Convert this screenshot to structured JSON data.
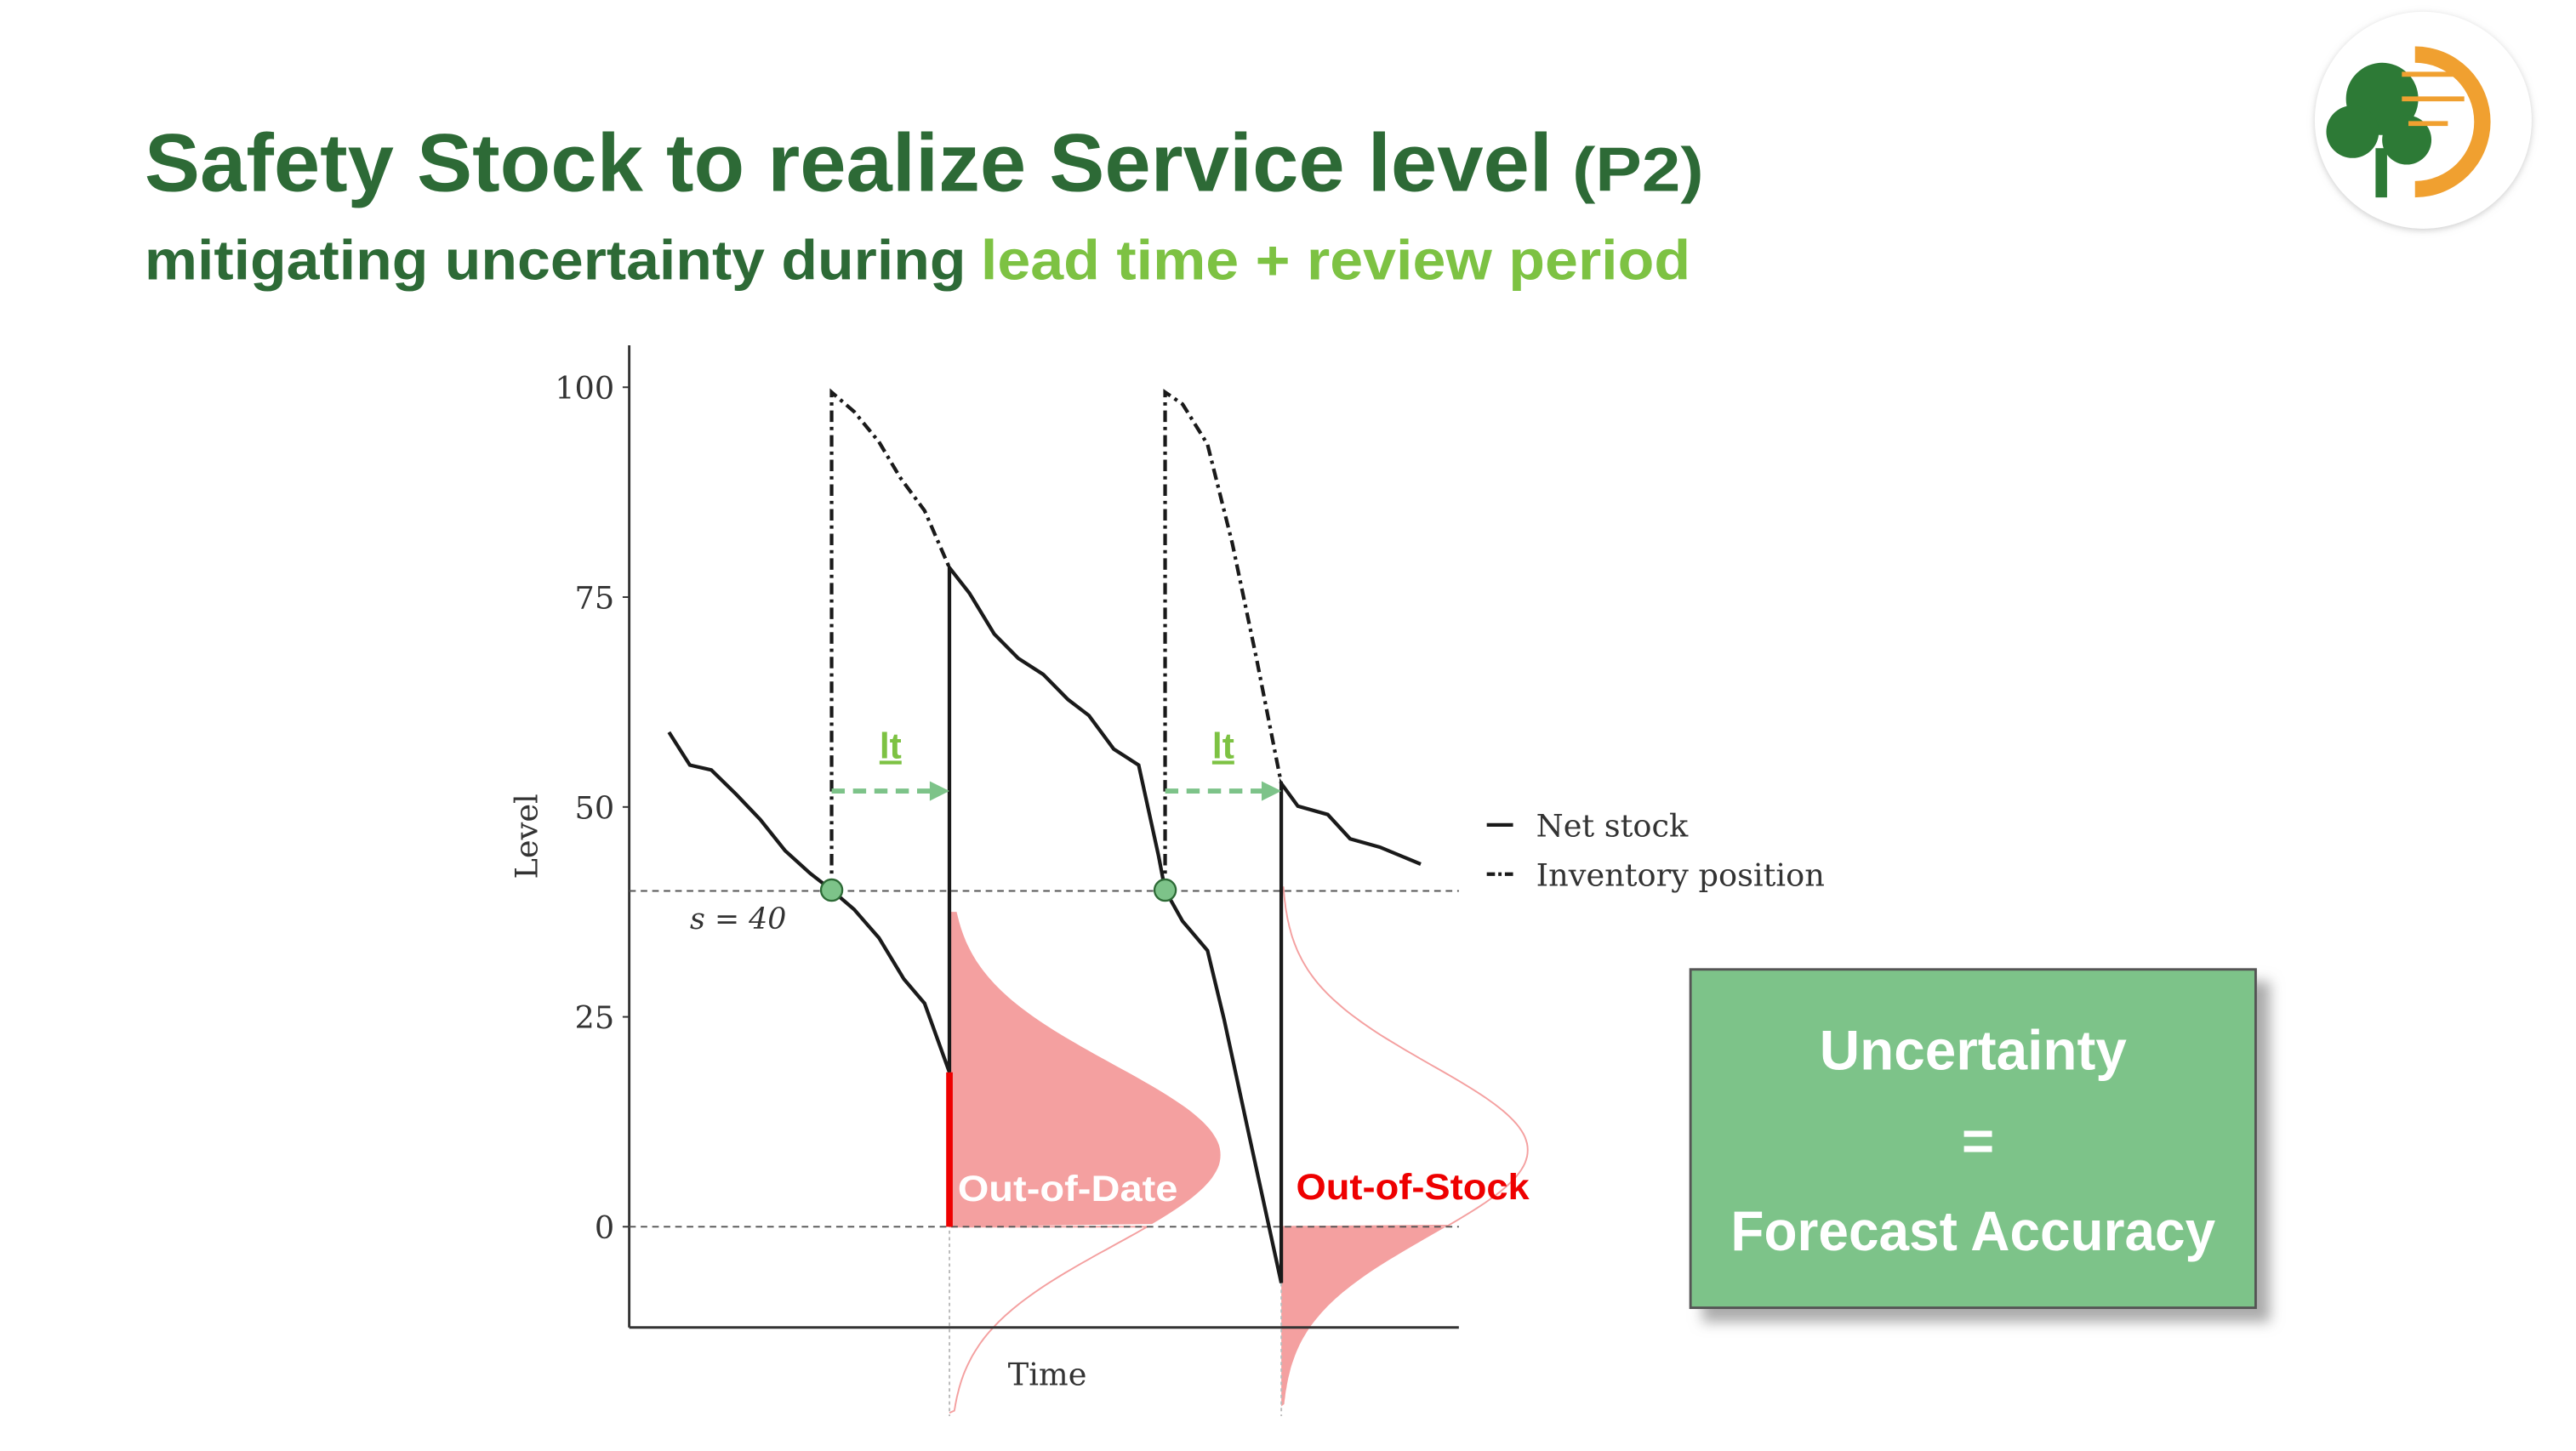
{
  "header": {
    "title": "Safety Stock to realize Service level",
    "title_suffix": "(P2)",
    "subtitle": "mitigating uncertainty during",
    "subtitle_highlight": "lead time + review period"
  },
  "chart_data": {
    "type": "line",
    "ylabel": "Level",
    "xlabel": "Time",
    "xlim": [
      0,
      100
    ],
    "ylim": [
      -12,
      105
    ],
    "yticks": [
      0,
      25,
      50,
      75,
      100
    ],
    "legend": "right",
    "series": [
      {
        "name": "Net stock",
        "color": "#1a1a1a",
        "style": "solid",
        "x": [
          4.8,
          7.3,
          9.9,
          12.9,
          15.8,
          18.8,
          21.8,
          24.4,
          27.1,
          30.1,
          33.1,
          35.6,
          38.6,
          38.6,
          41,
          44,
          46.9,
          49.9,
          52.9,
          55.4,
          58.4,
          61.4,
          63.8,
          64.6,
          66.7,
          69.7,
          71.7,
          74.7,
          78.6,
          78.6,
          80.6,
          84.2,
          86.9,
          90.5,
          95.4
        ],
        "values": [
          58.9,
          55,
          54.4,
          51.5,
          48.5,
          44.8,
          42.1,
          40.1,
          37.8,
          34.4,
          29.5,
          26.6,
          18.4,
          78.5,
          75.5,
          70.6,
          67.7,
          65.8,
          62.8,
          60.9,
          56.9,
          55,
          44.2,
          40.1,
          36.4,
          32.9,
          24.7,
          11,
          -6.7,
          52.8,
          50.1,
          49.1,
          46.2,
          45.2,
          43.2
        ]
      },
      {
        "name": "Inventory position",
        "color": "#1a1a1a",
        "style": "dashdot",
        "x": [
          24.4,
          24.4,
          27.1,
          30.1,
          32.7,
          35.6,
          38.6,
          null,
          64.6,
          64.6,
          66.7,
          69.7,
          72.7,
          75.6,
          78.6
        ],
        "values": [
          40.1,
          99.4,
          97.1,
          93.5,
          89.2,
          85.3,
          78.5,
          null,
          40.1,
          99.4,
          98,
          93.2,
          81.4,
          67.7,
          52.8
        ]
      }
    ],
    "reorder_level": {
      "value": 40,
      "label": "s = 40"
    },
    "lead_time_arrows": [
      {
        "label": "lt",
        "from": 24.4,
        "to": 38.6,
        "level": 51.9,
        "color": "#7dc389"
      },
      {
        "label": "lt",
        "from": 64.6,
        "to": 78.6,
        "level": 51.9,
        "color": "#7dc389"
      }
    ],
    "annotations": [
      "Out-of-Date",
      "Out-of-Stock"
    ]
  },
  "callout": {
    "lines": [
      "Uncertainty",
      "=",
      "Forecast Accuracy"
    ]
  }
}
